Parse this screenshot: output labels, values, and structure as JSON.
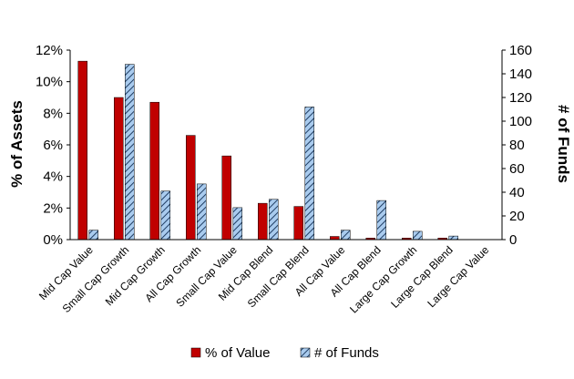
{
  "chart_data": {
    "type": "bar",
    "categories": [
      "Mid Cap Value",
      "Small Cap Growth",
      "Mid Cap Growth",
      "All Cap Growth",
      "Small Cap Value",
      "Mid Cap Blend",
      "Small Cap Blend",
      "All Cap Value",
      "All Cap Blend",
      "Large Cap Growth",
      "Large Cap Blend",
      "Large Cap Value"
    ],
    "series": [
      {
        "name": "% of Value",
        "axis": "left",
        "values": [
          11.3,
          9.0,
          8.7,
          6.6,
          5.3,
          2.3,
          2.1,
          0.2,
          0.1,
          0.1,
          0.1,
          0.0
        ],
        "color": "#c00000"
      },
      {
        "name": "# of Funds",
        "axis": "right",
        "values": [
          8,
          148,
          41,
          47,
          27,
          34,
          112,
          8,
          33,
          7,
          3,
          0
        ],
        "color": "#9fc3e8"
      }
    ],
    "y_left": {
      "label": "% of Assets",
      "ylim": [
        0,
        12
      ],
      "ticks": [
        "0%",
        "2%",
        "4%",
        "6%",
        "8%",
        "10%",
        "12%"
      ]
    },
    "y_right": {
      "label": "# of Funds",
      "ylim": [
        0,
        160
      ],
      "ticks": [
        "0",
        "20",
        "40",
        "60",
        "80",
        "100",
        "120",
        "140",
        "160"
      ]
    },
    "grid": false,
    "legend_position": "bottom"
  }
}
